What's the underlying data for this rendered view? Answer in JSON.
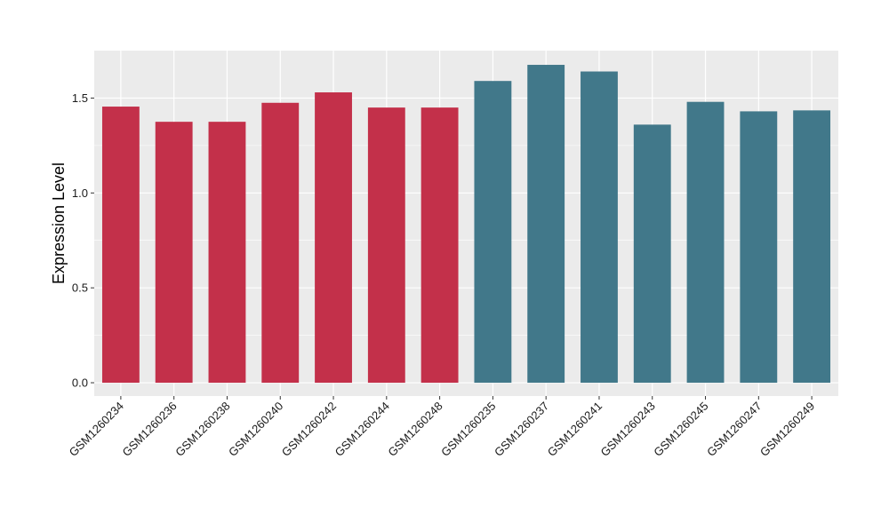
{
  "chart_data": {
    "type": "bar",
    "title": "",
    "xlabel": "",
    "ylabel": "Expression Level",
    "ylim": [
      -0.07,
      1.75
    ],
    "yticks": [
      0.0,
      0.5,
      1.0,
      1.5
    ],
    "ytick_labels": [
      "0.0",
      "0.5",
      "1.0",
      "1.5"
    ],
    "grid": true,
    "background": "#ebebeb",
    "categories": [
      "GSM1260234",
      "GSM1260236",
      "GSM1260238",
      "GSM1260240",
      "GSM1260242",
      "GSM1260244",
      "GSM1260248",
      "GSM1260235",
      "GSM1260237",
      "GSM1260241",
      "GSM1260243",
      "GSM1260245",
      "GSM1260247",
      "GSM1260249"
    ],
    "values": [
      1.455,
      1.375,
      1.375,
      1.475,
      1.53,
      1.45,
      1.45,
      1.59,
      1.675,
      1.64,
      1.36,
      1.48,
      1.43,
      1.435
    ],
    "bar_colors": [
      "#c3304a",
      "#c3304a",
      "#c3304a",
      "#c3304a",
      "#c3304a",
      "#c3304a",
      "#c3304a",
      "#41788a",
      "#41788a",
      "#41788a",
      "#41788a",
      "#41788a",
      "#41788a",
      "#41788a"
    ]
  }
}
